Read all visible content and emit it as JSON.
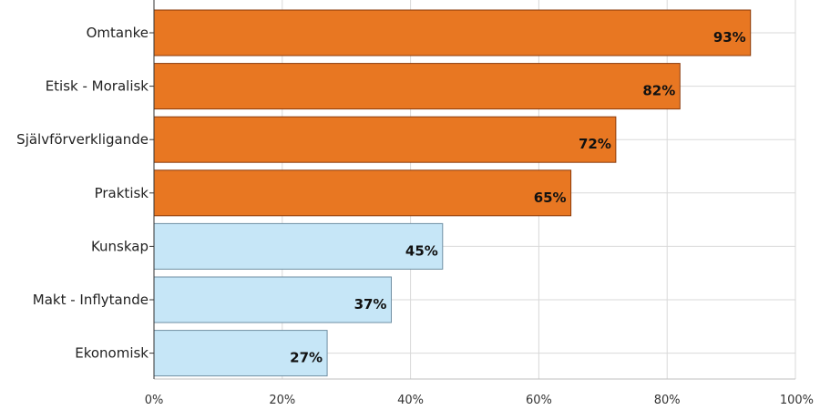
{
  "chart_data": {
    "type": "bar",
    "orientation": "horizontal",
    "categories": [
      "Omtanke",
      "Etisk - Moralisk",
      "Självförverkligande",
      "Praktisk",
      "Kunskap",
      "Makt - Inflytande",
      "Ekonomisk"
    ],
    "values": [
      93,
      82,
      72,
      65,
      45,
      37,
      27
    ],
    "value_labels": [
      "93%",
      "82%",
      "72%",
      "65%",
      "45%",
      "37%",
      "27%"
    ],
    "xlim": [
      0,
      100
    ],
    "xticks": [
      0,
      20,
      40,
      60,
      80,
      100
    ],
    "xtick_labels": [
      "0%",
      "20%",
      "40%",
      "60%",
      "80%",
      "100%"
    ],
    "grid": true,
    "colors": {
      "high": "#E87722",
      "low": "#C6E6F7",
      "high_edge": "#8a3a0a",
      "low_edge": "#6f8fa3",
      "grid": "#d9d9d9"
    },
    "bar_color_groups": [
      "high",
      "high",
      "high",
      "high",
      "low",
      "low",
      "low"
    ]
  }
}
